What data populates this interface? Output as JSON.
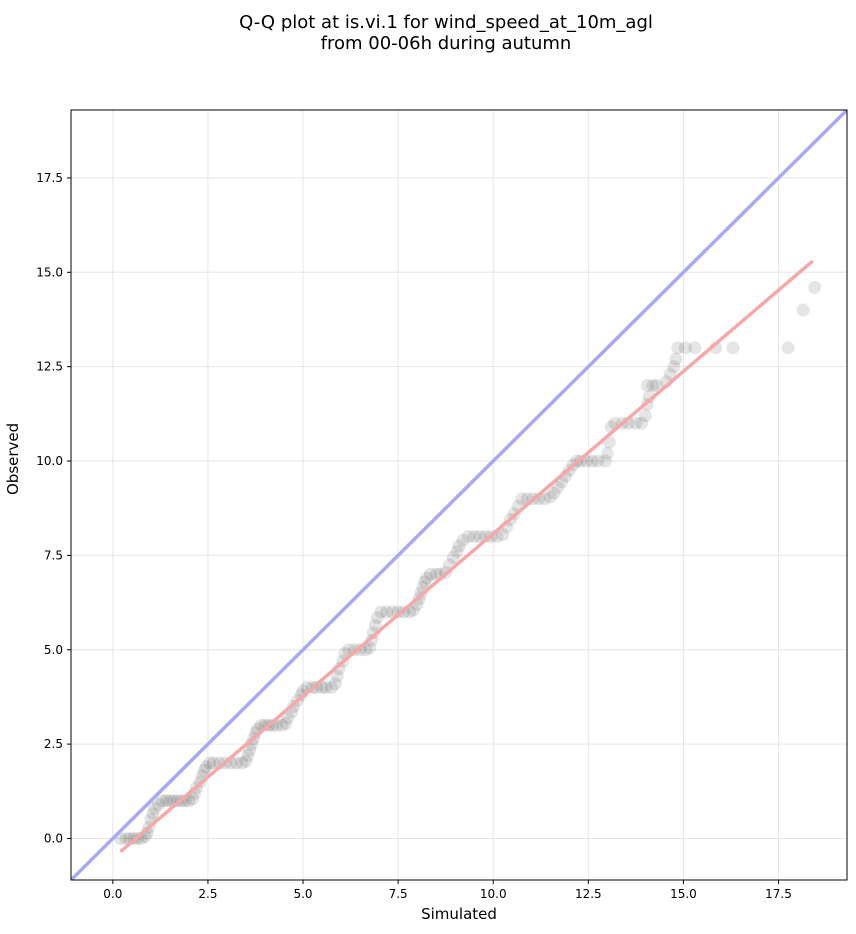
{
  "chart_data": {
    "type": "scatter",
    "title": "Q-Q plot at is.vi.1 for wind_speed_at_10m_agl",
    "subtitle": "from 00-06h during autumn",
    "xlabel": "Simulated",
    "ylabel": "Observed",
    "xlim": [
      -1.1,
      19.3
    ],
    "ylim": [
      -1.1,
      19.3
    ],
    "xticks": [
      "0.0",
      "2.5",
      "5.0",
      "7.5",
      "10.0",
      "12.5",
      "15.0",
      "17.5"
    ],
    "yticks": [
      "0.0",
      "2.5",
      "5.0",
      "7.5",
      "10.0",
      "12.5",
      "15.0",
      "17.5"
    ],
    "xtick_values": [
      0,
      2.5,
      5,
      7.5,
      10,
      12.5,
      15,
      17.5
    ],
    "ytick_values": [
      0,
      2.5,
      5,
      7.5,
      10,
      12.5,
      15,
      17.5
    ],
    "grid": true,
    "reference_line": {
      "from": [
        -1.1,
        -1.1
      ],
      "to": [
        19.3,
        19.3
      ],
      "color": "#a8a8f5"
    },
    "fit_line": {
      "from": [
        0.2,
        -0.35
      ],
      "to": [
        18.4,
        15.3
      ],
      "color": "#f5a8a8"
    },
    "series": [
      {
        "color": "#000000",
        "points": [
          [
            0.2,
            0
          ],
          [
            0.35,
            0
          ],
          [
            0.45,
            0
          ],
          [
            0.55,
            0
          ],
          [
            0.65,
            0
          ],
          [
            0.75,
            0
          ],
          [
            0.85,
            0.05
          ],
          [
            0.9,
            0.15
          ],
          [
            0.95,
            0.3
          ],
          [
            1.0,
            0.5
          ],
          [
            1.05,
            0.65
          ],
          [
            1.1,
            0.8
          ],
          [
            1.2,
            0.9
          ],
          [
            1.3,
            1
          ],
          [
            1.4,
            1
          ],
          [
            1.5,
            1
          ],
          [
            1.6,
            1
          ],
          [
            1.7,
            1
          ],
          [
            1.8,
            1
          ],
          [
            1.9,
            1
          ],
          [
            2.0,
            1
          ],
          [
            2.1,
            1.05
          ],
          [
            2.15,
            1.2
          ],
          [
            2.2,
            1.35
          ],
          [
            2.3,
            1.5
          ],
          [
            2.35,
            1.65
          ],
          [
            2.4,
            1.8
          ],
          [
            2.45,
            1.9
          ],
          [
            2.55,
            2
          ],
          [
            2.65,
            2
          ],
          [
            2.8,
            2
          ],
          [
            2.95,
            2
          ],
          [
            3.1,
            2
          ],
          [
            3.25,
            2
          ],
          [
            3.4,
            2
          ],
          [
            3.5,
            2.05
          ],
          [
            3.55,
            2.2
          ],
          [
            3.6,
            2.35
          ],
          [
            3.65,
            2.5
          ],
          [
            3.7,
            2.65
          ],
          [
            3.75,
            2.8
          ],
          [
            3.8,
            2.9
          ],
          [
            3.9,
            3
          ],
          [
            4.0,
            3
          ],
          [
            4.1,
            3
          ],
          [
            4.2,
            3
          ],
          [
            4.3,
            3
          ],
          [
            4.45,
            3
          ],
          [
            4.55,
            3.05
          ],
          [
            4.6,
            3.2
          ],
          [
            4.7,
            3.35
          ],
          [
            4.75,
            3.5
          ],
          [
            4.85,
            3.65
          ],
          [
            4.95,
            3.8
          ],
          [
            5.0,
            3.9
          ],
          [
            5.1,
            4
          ],
          [
            5.25,
            4
          ],
          [
            5.35,
            4
          ],
          [
            5.5,
            4
          ],
          [
            5.6,
            4
          ],
          [
            5.75,
            4
          ],
          [
            5.85,
            4.1
          ],
          [
            5.9,
            4.3
          ],
          [
            5.95,
            4.5
          ],
          [
            6.05,
            4.7
          ],
          [
            6.1,
            4.9
          ],
          [
            6.2,
            5
          ],
          [
            6.35,
            5
          ],
          [
            6.5,
            5
          ],
          [
            6.65,
            5
          ],
          [
            6.75,
            5.05
          ],
          [
            6.8,
            5.25
          ],
          [
            6.85,
            5.45
          ],
          [
            6.9,
            5.65
          ],
          [
            6.95,
            5.85
          ],
          [
            7.05,
            6
          ],
          [
            7.2,
            6
          ],
          [
            7.35,
            6
          ],
          [
            7.5,
            6
          ],
          [
            7.65,
            6
          ],
          [
            7.8,
            6
          ],
          [
            7.9,
            6.05
          ],
          [
            8.0,
            6.2
          ],
          [
            8.05,
            6.35
          ],
          [
            8.1,
            6.5
          ],
          [
            8.15,
            6.65
          ],
          [
            8.2,
            6.8
          ],
          [
            8.25,
            6.9
          ],
          [
            8.35,
            7
          ],
          [
            8.5,
            7
          ],
          [
            8.6,
            7
          ],
          [
            8.75,
            7.05
          ],
          [
            8.85,
            7.25
          ],
          [
            8.95,
            7.45
          ],
          [
            9.05,
            7.6
          ],
          [
            9.1,
            7.75
          ],
          [
            9.2,
            7.9
          ],
          [
            9.35,
            8
          ],
          [
            9.5,
            8
          ],
          [
            9.65,
            8
          ],
          [
            9.8,
            8
          ],
          [
            9.95,
            8
          ],
          [
            10.1,
            8
          ],
          [
            10.25,
            8.05
          ],
          [
            10.35,
            8.25
          ],
          [
            10.45,
            8.45
          ],
          [
            10.55,
            8.6
          ],
          [
            10.65,
            8.8
          ],
          [
            10.75,
            9
          ],
          [
            10.9,
            9
          ],
          [
            11.05,
            9
          ],
          [
            11.2,
            9
          ],
          [
            11.35,
            9
          ],
          [
            11.5,
            9.05
          ],
          [
            11.6,
            9.15
          ],
          [
            11.7,
            9.3
          ],
          [
            11.8,
            9.45
          ],
          [
            11.9,
            9.6
          ],
          [
            12.0,
            9.75
          ],
          [
            12.1,
            9.9
          ],
          [
            12.2,
            10
          ],
          [
            12.3,
            10
          ],
          [
            12.45,
            10
          ],
          [
            12.6,
            10
          ],
          [
            12.75,
            10
          ],
          [
            12.95,
            10
          ],
          [
            13.0,
            10.2
          ],
          [
            13.05,
            10.5
          ],
          [
            13.1,
            10.9
          ],
          [
            13.2,
            11
          ],
          [
            13.4,
            11
          ],
          [
            13.55,
            11
          ],
          [
            13.75,
            11
          ],
          [
            13.9,
            11
          ],
          [
            14.0,
            11.2
          ],
          [
            14.05,
            11.5
          ],
          [
            14.1,
            11.7
          ],
          [
            14.05,
            12
          ],
          [
            14.2,
            12
          ],
          [
            14.3,
            12
          ],
          [
            14.55,
            12.1
          ],
          [
            14.65,
            12.3
          ],
          [
            14.75,
            12.5
          ],
          [
            14.8,
            12.7
          ],
          [
            14.85,
            13
          ],
          [
            15.05,
            13
          ],
          [
            15.3,
            13
          ],
          [
            15.85,
            13
          ],
          [
            16.3,
            13
          ],
          [
            17.75,
            13
          ],
          [
            18.15,
            14
          ],
          [
            18.45,
            14.6
          ]
        ]
      }
    ]
  }
}
